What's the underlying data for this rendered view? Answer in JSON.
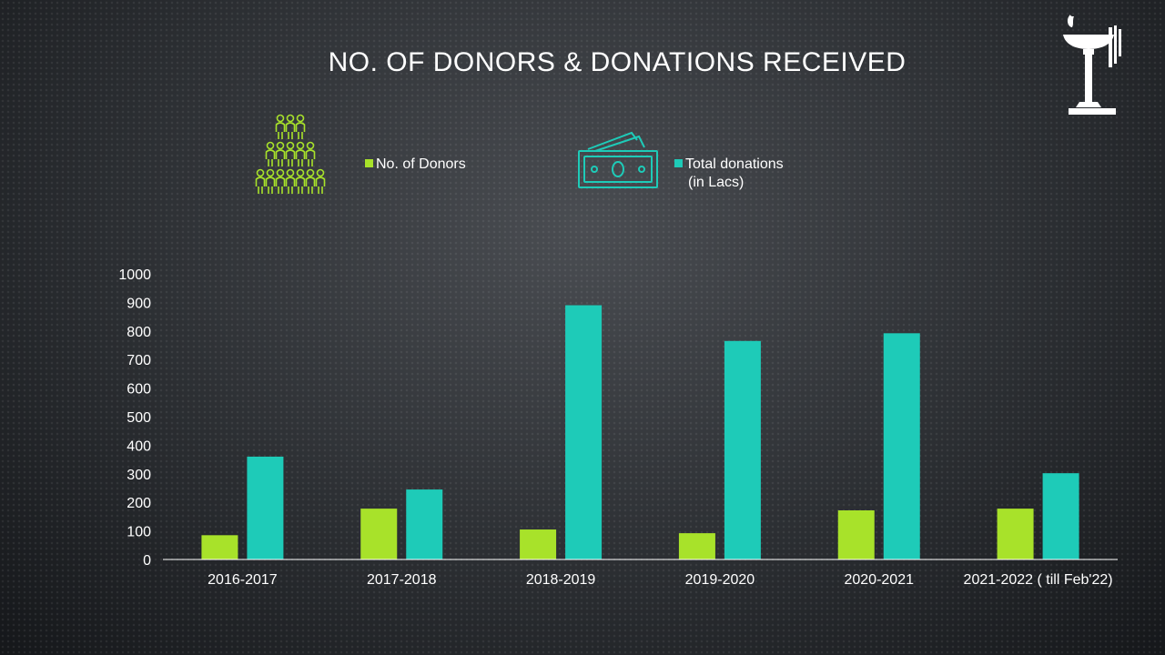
{
  "slide": {
    "title": "NO. OF DONORS & DONATIONS RECEIVED"
  },
  "icons": {
    "logo": "torch-lamp-icon",
    "donors": "people-group-icon",
    "donations": "banknote-icon"
  },
  "colors": {
    "donors": "#a8e22a",
    "donations": "#1ecbb8",
    "axis": "#ffffff"
  },
  "legend": {
    "donors_label": "No. of Donors",
    "donations_label_line1": "Total donations",
    "donations_label_line2": "(in Lacs)"
  },
  "chart_data": {
    "type": "bar",
    "categories": [
      "2016-2017",
      "2017-2018",
      "2018-2019",
      "2019-2020",
      "2020-2021",
      "2021-2022 ( till Feb'22)"
    ],
    "series": [
      {
        "name": "No. of Donors",
        "values": [
          85,
          178,
          105,
          92,
          172,
          178
        ]
      },
      {
        "name": "Total donations (in Lacs)",
        "values": [
          360,
          245,
          890,
          765,
          792,
          302
        ]
      }
    ],
    "yticks": [
      0,
      100,
      200,
      300,
      400,
      500,
      600,
      700,
      800,
      900,
      1000
    ],
    "ylim": [
      0,
      1000
    ],
    "grid": false,
    "legend_position": "top"
  }
}
